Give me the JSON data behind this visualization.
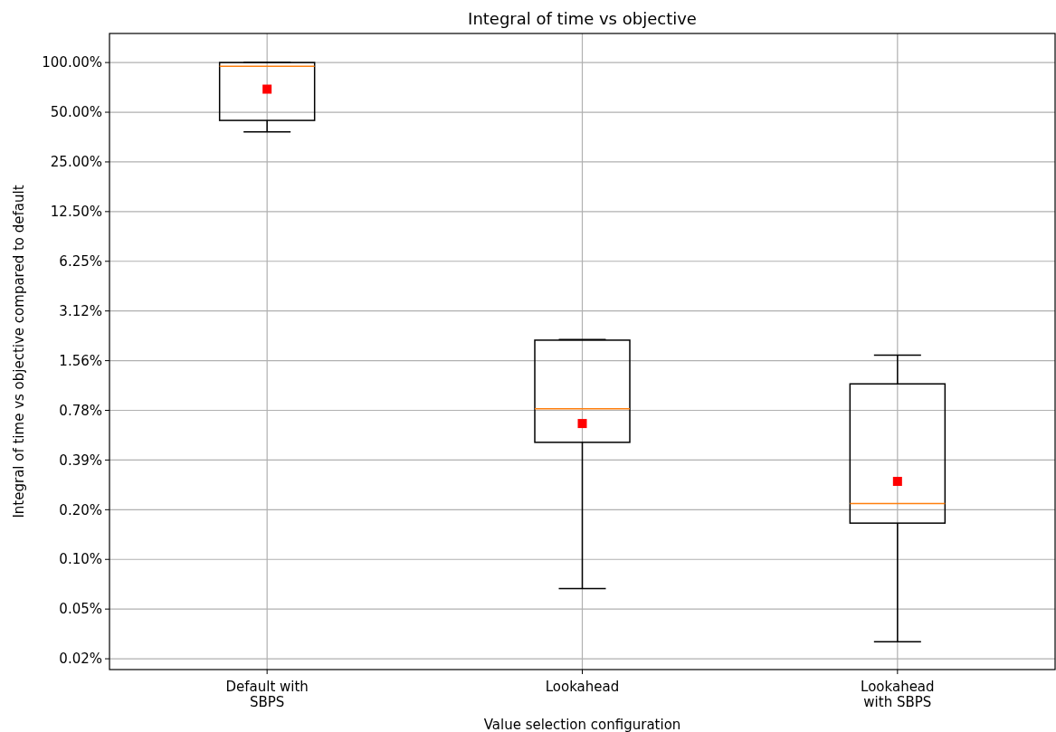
{
  "chart_data": {
    "type": "box",
    "title": "Integral of time vs objective",
    "xlabel": "Value selection configuration",
    "ylabel": "Integral of time vs objective compared to default",
    "categories": [
      "Default with\nSBPS",
      "Lookahead",
      "Lookahead\nwith SBPS"
    ],
    "series": [
      {
        "color": "#000000",
        "boxes": [
          {
            "low": 38,
            "q1": 44.6,
            "median": 95,
            "q3": 100,
            "high": 100,
            "mean": 69
          },
          {
            "low": 0.065,
            "q1": 0.5,
            "median": 0.8,
            "q3": 2.08,
            "high": 2.1,
            "mean": 0.65
          },
          {
            "low": 0.031,
            "q1": 0.162,
            "median": 0.213,
            "q3": 1.13,
            "high": 1.69,
            "mean": 0.29
          }
        ]
      }
    ],
    "log": true,
    "ylim": [
      0.021,
      150
    ],
    "yticks": [
      {
        "value": 100,
        "label": "100.00%"
      },
      {
        "value": 50,
        "label": "50.00%"
      },
      {
        "value": 25,
        "label": "25.00%"
      },
      {
        "value": 12.5,
        "label": "12.50%"
      },
      {
        "value": 6.25,
        "label": "6.25%"
      },
      {
        "value": 3.125,
        "label": "3.12%"
      },
      {
        "value": 1.5625,
        "label": "1.56%"
      },
      {
        "value": 0.78125,
        "label": "0.78%"
      },
      {
        "value": 0.390625,
        "label": "0.39%"
      },
      {
        "value": 0.1953125,
        "label": "0.20%"
      },
      {
        "value": 0.09765625,
        "label": "0.10%"
      },
      {
        "value": 0.048828125,
        "label": "0.05%"
      },
      {
        "value": 0.0244140625,
        "label": "0.02%"
      }
    ],
    "grid": true,
    "marker": "square"
  }
}
